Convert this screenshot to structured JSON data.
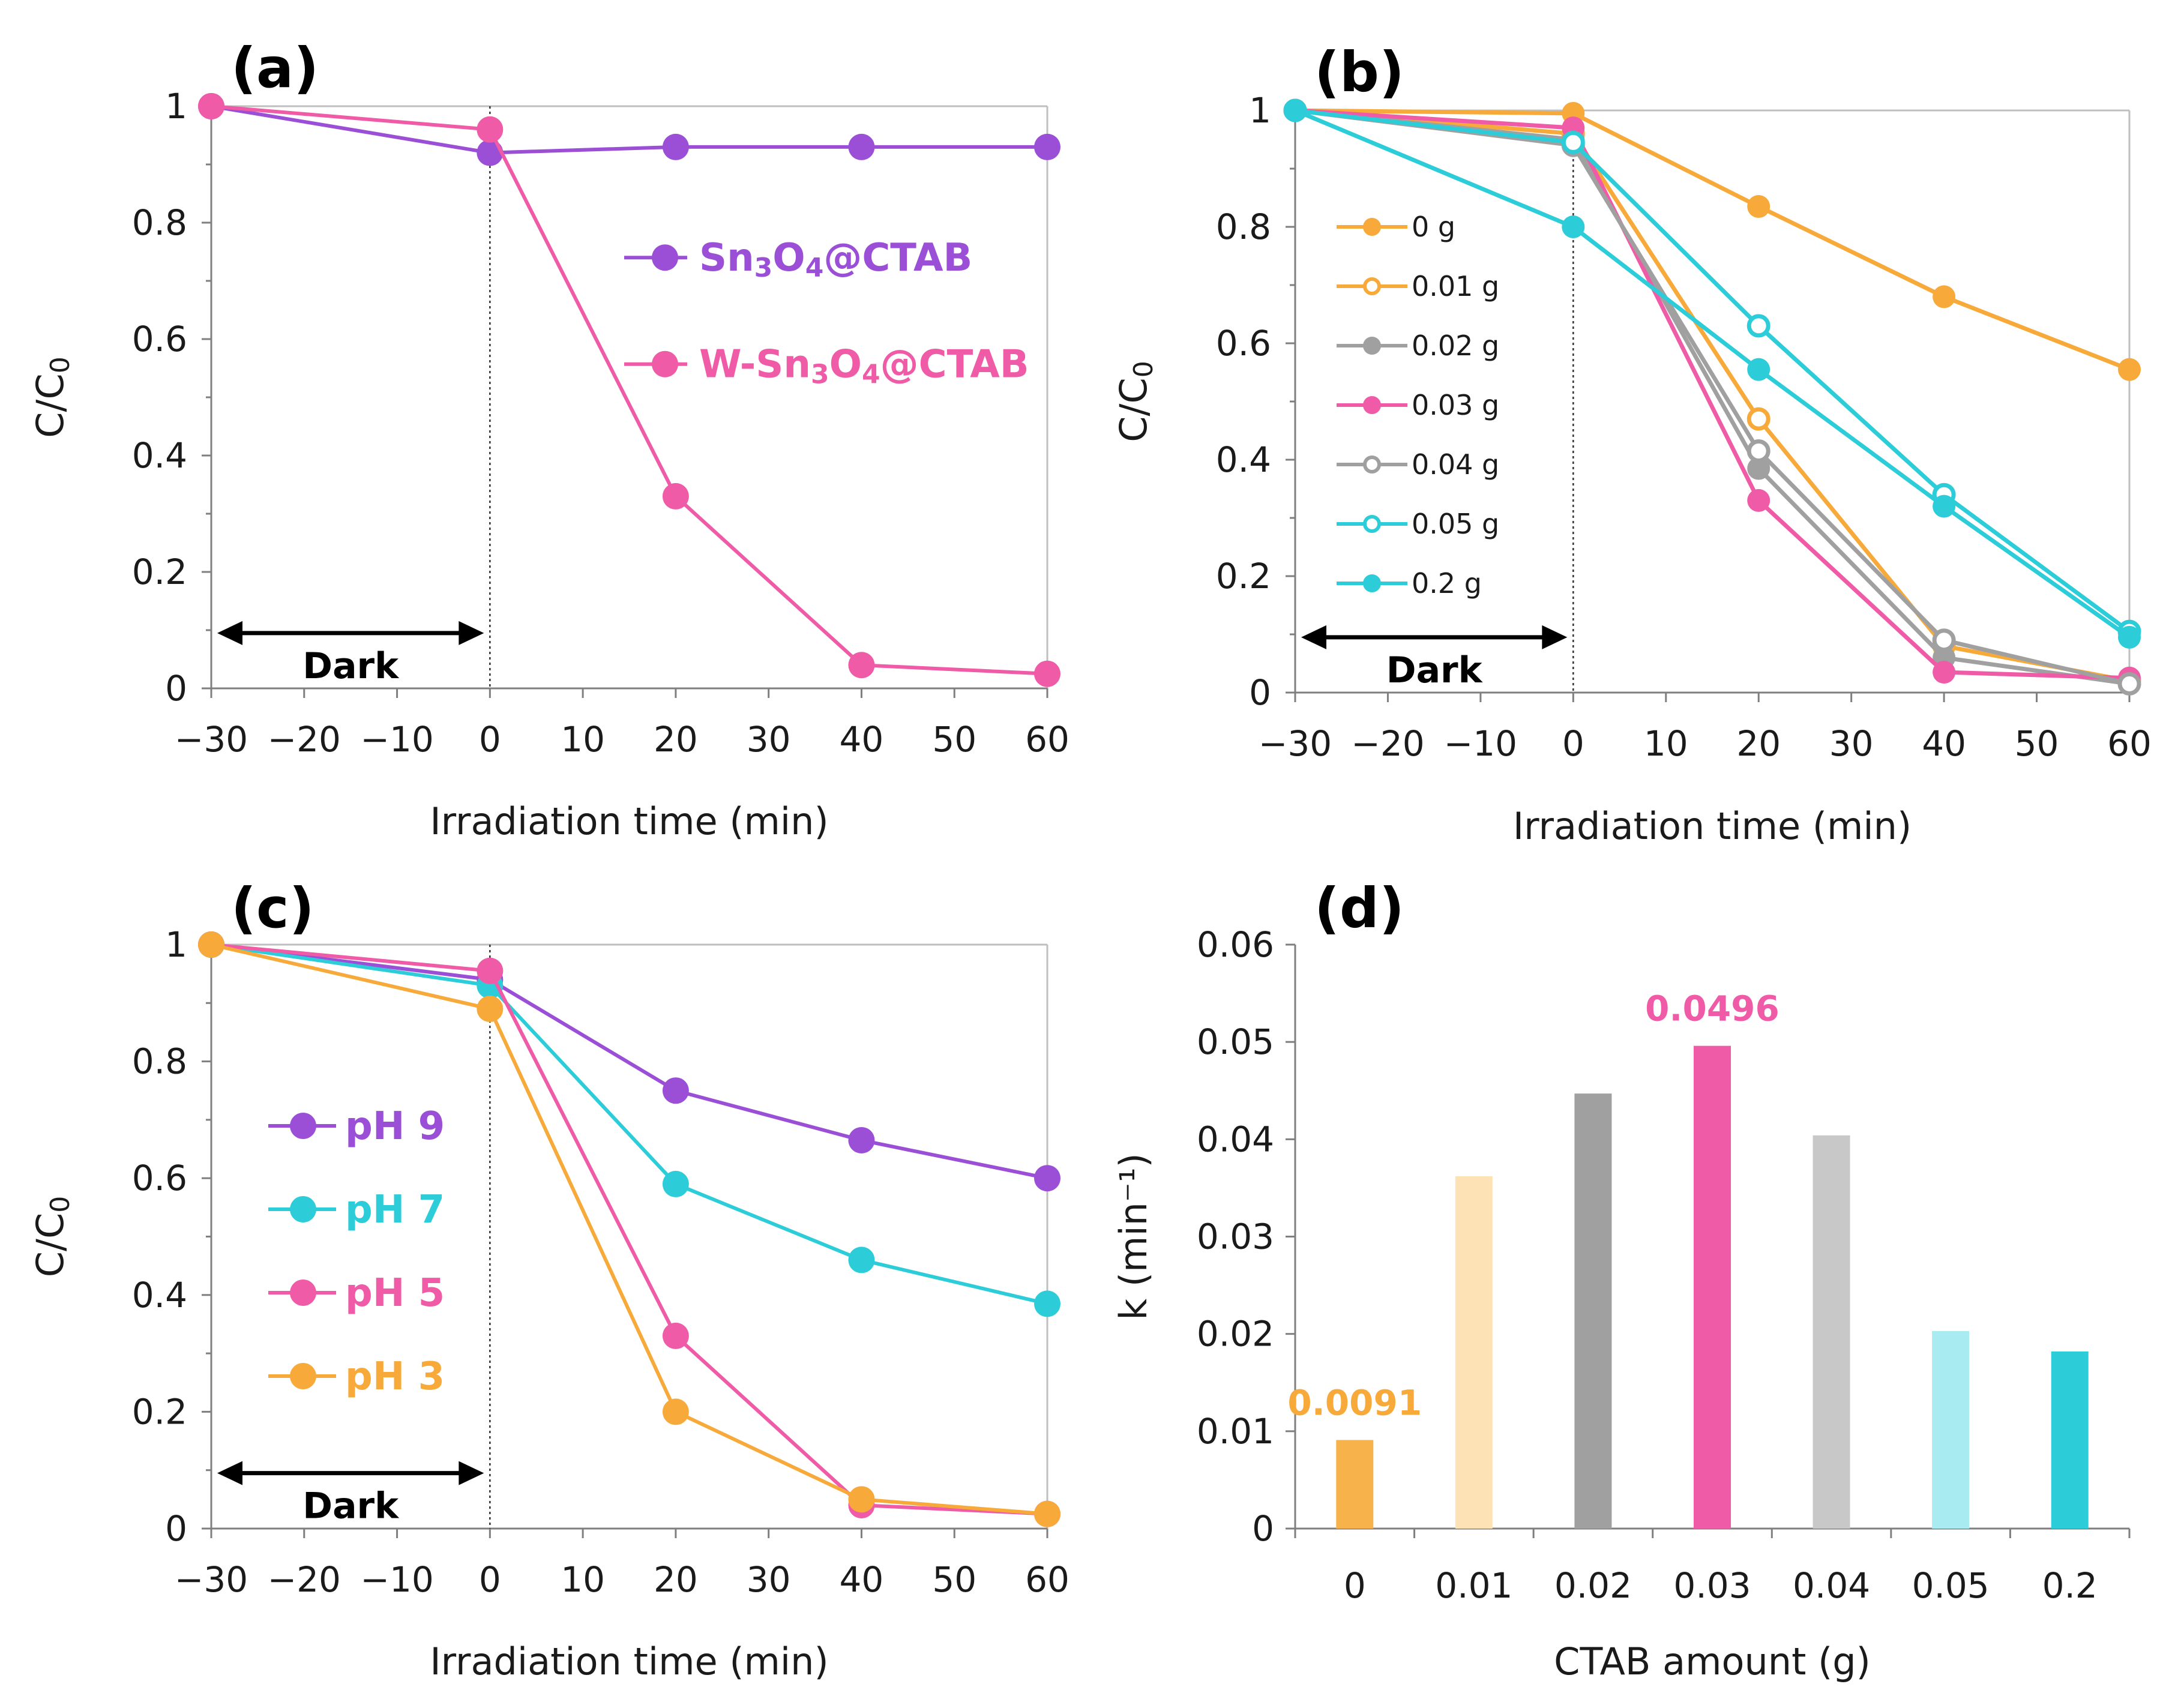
{
  "chart_data": [
    {
      "panel": "(a)",
      "type": "line",
      "xlabel": "Irradiation time (min)",
      "ylabel": "C/C0",
      "xlim": [
        -30,
        60
      ],
      "ylim": [
        0,
        1
      ],
      "xticks": [
        "−30",
        "−20",
        "−10",
        "0",
        "10",
        "20",
        "30",
        "40",
        "50",
        "60"
      ],
      "yticks": [
        "0",
        "0.2",
        "0.4",
        "0.6",
        "0.8",
        "1"
      ],
      "annotation": "Dark",
      "series": [
        {
          "name": "Sn₃O₄@CTAB",
          "color": "#9b4fd6",
          "filled": true,
          "x": [
            -30,
            0,
            20,
            40,
            60
          ],
          "y": [
            1,
            0.92,
            0.93,
            0.93,
            0.93
          ]
        },
        {
          "name": "W-Sn₃O₄@CTAB",
          "color": "#ef5ba6",
          "filled": true,
          "x": [
            -30,
            0,
            20,
            40,
            60
          ],
          "y": [
            1,
            0.96,
            0.33,
            0.04,
            0.025
          ]
        }
      ]
    },
    {
      "panel": "(b)",
      "type": "line",
      "xlabel": "Irradiation time (min)",
      "ylabel": "C/C0",
      "xlim": [
        -30,
        60
      ],
      "ylim": [
        0,
        1
      ],
      "xticks": [
        "−30",
        "−20",
        "−10",
        "0",
        "10",
        "20",
        "30",
        "40",
        "50",
        "60"
      ],
      "yticks": [
        "0",
        "0.2",
        "0.4",
        "0.6",
        "0.8",
        "1"
      ],
      "annotation": "Dark",
      "series": [
        {
          "name": "0 g",
          "color": "#f7aa3a",
          "filled": true,
          "x": [
            -30,
            0,
            20,
            40,
            60
          ],
          "y": [
            1,
            0.995,
            0.835,
            0.68,
            0.555
          ]
        },
        {
          "name": "0.01 g",
          "color": "#f7aa3a",
          "filled": false,
          "x": [
            -30,
            0,
            20,
            40,
            60
          ],
          "y": [
            1,
            0.96,
            0.47,
            0.08,
            0.02
          ]
        },
        {
          "name": "0.02 g",
          "color": "#a0a0a0",
          "filled": true,
          "x": [
            -30,
            0,
            20,
            40,
            60
          ],
          "y": [
            1,
            0.95,
            0.385,
            0.06,
            0.015
          ]
        },
        {
          "name": "0.03 g",
          "color": "#ef5ba6",
          "filled": true,
          "x": [
            -30,
            0,
            20,
            40,
            60
          ],
          "y": [
            1,
            0.97,
            0.33,
            0.035,
            0.025
          ]
        },
        {
          "name": "0.04 g",
          "color": "#a0a0a0",
          "filled": false,
          "x": [
            -30,
            0,
            20,
            40,
            60
          ],
          "y": [
            1,
            0.94,
            0.415,
            0.09,
            0.015
          ]
        },
        {
          "name": "0.05 g",
          "color": "#2ccdd9",
          "filled": false,
          "x": [
            -30,
            0,
            20,
            40,
            60
          ],
          "y": [
            1,
            0.945,
            0.63,
            0.34,
            0.105
          ]
        },
        {
          "name": "0.2 g",
          "color": "#2ccdd9",
          "filled": true,
          "x": [
            -30,
            0,
            20,
            40,
            60
          ],
          "y": [
            1,
            0.8,
            0.555,
            0.32,
            0.095
          ]
        }
      ]
    },
    {
      "panel": "(c)",
      "type": "line",
      "xlabel": "Irradiation time (min)",
      "ylabel": "C/C0",
      "xlim": [
        -30,
        60
      ],
      "ylim": [
        0,
        1
      ],
      "xticks": [
        "−30",
        "−20",
        "−10",
        "0",
        "10",
        "20",
        "30",
        "40",
        "50",
        "60"
      ],
      "yticks": [
        "0",
        "0.2",
        "0.4",
        "0.6",
        "0.8",
        "1"
      ],
      "annotation": "Dark",
      "series": [
        {
          "name": "pH 9",
          "color": "#9b4fd6",
          "filled": true,
          "x": [
            -30,
            0,
            20,
            40,
            60
          ],
          "y": [
            1,
            0.94,
            0.75,
            0.665,
            0.6
          ]
        },
        {
          "name": "pH 7",
          "color": "#2ccdd9",
          "filled": true,
          "x": [
            -30,
            0,
            20,
            40,
            60
          ],
          "y": [
            1,
            0.93,
            0.59,
            0.46,
            0.385
          ]
        },
        {
          "name": "pH 5",
          "color": "#ef5ba6",
          "filled": true,
          "x": [
            -30,
            0,
            20,
            40,
            60
          ],
          "y": [
            1,
            0.955,
            0.33,
            0.04,
            0.025
          ]
        },
        {
          "name": "pH 3",
          "color": "#f7aa3a",
          "filled": true,
          "x": [
            -30,
            0,
            20,
            40,
            60
          ],
          "y": [
            1,
            0.89,
            0.2,
            0.05,
            0.025
          ]
        }
      ]
    },
    {
      "panel": "(d)",
      "type": "bar",
      "xlabel": "CTAB amount (g)",
      "ylabel": "k (min⁻¹)",
      "ylim": [
        0,
        0.06
      ],
      "yticks": [
        "0",
        "0.01",
        "0.02",
        "0.03",
        "0.04",
        "0.05",
        "0.06"
      ],
      "categories": [
        "0",
        "0.01",
        "0.02",
        "0.03",
        "0.04",
        "0.05",
        "0.2"
      ],
      "values": [
        0.0091,
        0.0362,
        0.0447,
        0.0496,
        0.0404,
        0.0203,
        0.0182
      ],
      "colors": [
        "#f7b24b",
        "#fde2b6",
        "#a0a0a0",
        "#ef5ba6",
        "#c8c8c8",
        "#a8ecf2",
        "#2ccdd9"
      ],
      "data_labels": [
        {
          "index": 0,
          "text": "0.0091",
          "color": "#f7aa3a"
        },
        {
          "index": 3,
          "text": "0.0496",
          "color": "#ef5ba6"
        }
      ]
    }
  ]
}
